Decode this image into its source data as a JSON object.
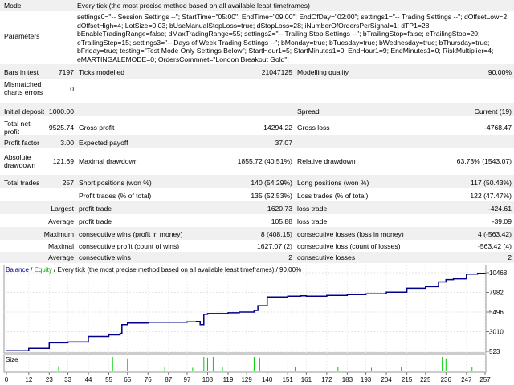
{
  "model": {
    "label": "Model",
    "value": "Every tick (the most precise method based on all available least timeframes)"
  },
  "parameters": {
    "label": "Parameters",
    "value": "settings0=\"-- Session Settings --\"; StartTime=\"05:00\"; EndTime=\"09:00\"; EndOfDay=\"02:00\"; settings1=\"-- Trading Settings --\"; dOffsetLow=2; dOffsetHigh=4; LotSize=0.03; bUseManualStopLoss=true; dStopLoss=28; iNumberOfOrdersPerSignal=1; dTP1=28; bEnableTradingRange=false; dMaxTradingRange=55; settings2=\"-- Trailing Stop Settings --\"; bTrailingStop=false; eTrailingStop=20; eTrailingStep=15; settings3=\"-- Days of Week Trading Settings --\"; bMonday=true; bTuesday=true; bWednesday=true; bThursday=true; bFriday=true; testing=\"Test Mode Only Settings Below\"; StartHour1=5; StartMinutes1=0; EndHour1=9; EndMinutes1=0; RiskMultiplier=4; eMARTINGALEMODE=0; OrdersCommnet=\"London Breakout Gold\";"
  },
  "stats": {
    "bars_label": "Bars in test",
    "bars_value": "7197",
    "ticks_label": "Ticks modelled",
    "ticks_value": "21047125",
    "quality_label": "Modelling quality",
    "quality_value": "90.00%",
    "mismatch_label1": "Mismatched",
    "mismatch_label2": "charts errors",
    "mismatch_value": "0",
    "deposit_label": "Initial deposit",
    "deposit_value": "1000.00",
    "spread_label": "Spread",
    "spread_value": "Current (19)",
    "netprofit_label1": "Total net",
    "netprofit_label2": "profit",
    "netprofit_value": "9525.74",
    "grossprofit_label": "Gross profit",
    "grossprofit_value": "14294.22",
    "grossloss_label": "Gross loss",
    "grossloss_value": "-4768.47",
    "pf_label": "Profit factor",
    "pf_value": "3.00",
    "payoff_label": "Expected payoff",
    "payoff_value": "37.07",
    "absdd_label1": "Absolute",
    "absdd_label2": "drawdown",
    "absdd_value": "121.69",
    "maxdd_label": "Maximal drawdown",
    "maxdd_value": "1855.72 (40.51%)",
    "reldd_label": "Relative drawdown",
    "reldd_value": "63.73% (1543.07)",
    "trades_label": "Total trades",
    "trades_value": "257",
    "short_label": "Short positions (won %)",
    "short_value": "140 (54.29%)",
    "long_label": "Long positions (won %)",
    "long_value": "117 (50.43%)",
    "profittrades_label": "Profit trades (% of total)",
    "profittrades_value": "135 (52.53%)",
    "losstrades_label": "Loss trades (% of total)",
    "losstrades_value": "122 (47.47%)",
    "largest_label": "Largest",
    "largest_profit_label": "profit trade",
    "largest_profit_value": "1620.73",
    "largest_loss_label": "loss trade",
    "largest_loss_value": "-424.61",
    "average_label": "Average",
    "average_profit_label": "profit trade",
    "average_profit_value": "105.88",
    "average_loss_label": "loss trade",
    "average_loss_value": "-39.09",
    "maximum_label": "Maximum",
    "cwins_label": "consecutive wins (profit in money)",
    "cwins_value": "8 (408.15)",
    "closses_label": "consecutive losses (loss in money)",
    "closses_value": "4 (-563.42)",
    "maximal_label": "Maximal",
    "cprofit_label": "consecutive profit (count of wins)",
    "cprofit_value": "1627.07 (2)",
    "closs_label": "consecutive loss (count of losses)",
    "closs_value": "-563.42 (4)",
    "avg2_label": "Average",
    "avgwins_label": "consecutive wins",
    "avgwins_value": "2",
    "avglosses_label": "consecutive losses",
    "avglosses_value": "2"
  },
  "chart_data": {
    "type": "line",
    "legend_balance": "Balance",
    "legend_separator": " / ",
    "legend_equity": "Equity",
    "legend_rest": " / Every tick (the most precise method based on all available least timeframes) / 90.00%",
    "yticks": [
      "10468",
      "7982",
      "5496",
      "3010",
      "523"
    ],
    "ytick_values": [
      10468,
      7982,
      5496,
      3010,
      523
    ],
    "xticks": [
      "0",
      "12",
      "23",
      "33",
      "44",
      "55",
      "65",
      "76",
      "87",
      "97",
      "108",
      "119",
      "129",
      "140",
      "151",
      "161",
      "172",
      "183",
      "193",
      "204",
      "215",
      "225",
      "236",
      "247",
      "257"
    ],
    "size_label": "Size",
    "balance_color": "#00008b",
    "equity_color": "#00aa00",
    "size_color": "#00cc00",
    "x": [
      0,
      12,
      23,
      33,
      44,
      55,
      61,
      62,
      65,
      76,
      87,
      97,
      102,
      104,
      106,
      108,
      112,
      119,
      125,
      129,
      133,
      135,
      140,
      151,
      158,
      161,
      172,
      183,
      193,
      204,
      215,
      225,
      232,
      236,
      240,
      247,
      253,
      257
    ],
    "balance": [
      600,
      900,
      1600,
      1700,
      2400,
      2600,
      2800,
      3900,
      4100,
      4200,
      4200,
      4250,
      4300,
      3900,
      5200,
      5300,
      5300,
      5400,
      5500,
      5500,
      5700,
      6300,
      7400,
      7500,
      7550,
      7500,
      7600,
      7700,
      7800,
      8000,
      8500,
      8700,
      9300,
      9600,
      9700,
      10300,
      10400,
      10450
    ],
    "size_bars": [
      {
        "trade": 28,
        "height": 0.35
      },
      {
        "trade": 57,
        "height": 1.0
      },
      {
        "trade": 65,
        "height": 0.9
      },
      {
        "trade": 85,
        "height": 0.3
      },
      {
        "trade": 100,
        "height": 0.25
      },
      {
        "trade": 106,
        "height": 1.0
      },
      {
        "trade": 108,
        "height": 0.95
      },
      {
        "trade": 111,
        "height": 1.0
      },
      {
        "trade": 116,
        "height": 0.3
      },
      {
        "trade": 133,
        "height": 1.0
      },
      {
        "trade": 136,
        "height": 0.95
      },
      {
        "trade": 155,
        "height": 0.3
      },
      {
        "trade": 178,
        "height": 0.3
      },
      {
        "trade": 196,
        "height": 0.25
      },
      {
        "trade": 212,
        "height": 0.3
      },
      {
        "trade": 234,
        "height": 1.0
      },
      {
        "trade": 236,
        "height": 0.9
      },
      {
        "trade": 250,
        "height": 0.3
      }
    ]
  }
}
